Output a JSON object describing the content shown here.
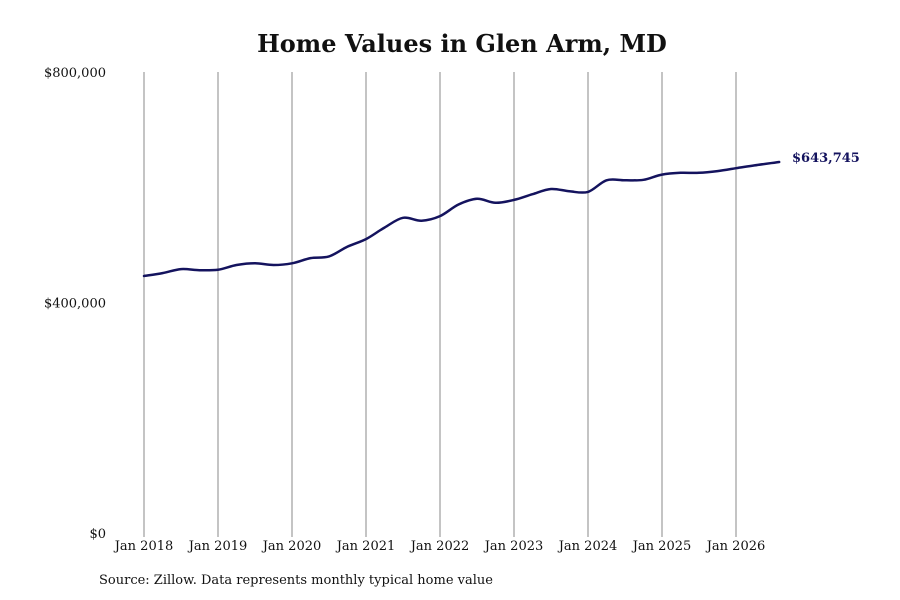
{
  "chart_data": {
    "type": "line",
    "title": "Home Values in Glen Arm, MD",
    "xlabel": "",
    "ylabel": "",
    "ylim": [
      0,
      800000
    ],
    "yticks": [
      0,
      400000,
      800000
    ],
    "ytick_labels": [
      "$0",
      "$400,000",
      "$800,000"
    ],
    "xticks": [
      "2018-01",
      "2019-01",
      "2020-01",
      "2021-01",
      "2022-01",
      "2023-01",
      "2024-01",
      "2025-01",
      "2026-01"
    ],
    "xtick_labels": [
      "Jan 2018",
      "Jan 2019",
      "Jan 2020",
      "Jan 2021",
      "Jan 2022",
      "Jan 2023",
      "Jan 2024",
      "Jan 2025",
      "Jan 2026"
    ],
    "grid": "vertical",
    "line_color": "#14135e",
    "series": [
      {
        "name": "",
        "x": [
          "2018-01",
          "2018-04",
          "2018-07",
          "2018-10",
          "2019-01",
          "2019-04",
          "2019-07",
          "2019-10",
          "2020-01",
          "2020-04",
          "2020-07",
          "2020-10",
          "2021-01",
          "2021-04",
          "2021-07",
          "2021-10",
          "2022-01",
          "2022-04",
          "2022-07",
          "2022-10",
          "2023-01",
          "2023-04",
          "2023-07",
          "2023-10",
          "2024-01",
          "2024-04",
          "2024-07",
          "2024-10",
          "2025-01",
          "2025-04",
          "2025-07",
          "2025-10",
          "2026-01",
          "2026-04",
          "2026-08"
        ],
        "values": [
          446000,
          451000,
          458000,
          456000,
          457000,
          465000,
          468000,
          465000,
          468000,
          477000,
          480000,
          497000,
          510000,
          530000,
          547000,
          542000,
          550000,
          570000,
          580000,
          573000,
          578000,
          588000,
          597000,
          593000,
          592000,
          612000,
          612000,
          613000,
          622000,
          625000,
          625000,
          628000,
          633000,
          638000,
          643745
        ]
      }
    ],
    "end_label": "$643,745",
    "source": "Source: Zillow. Data represents monthly typical home value"
  }
}
